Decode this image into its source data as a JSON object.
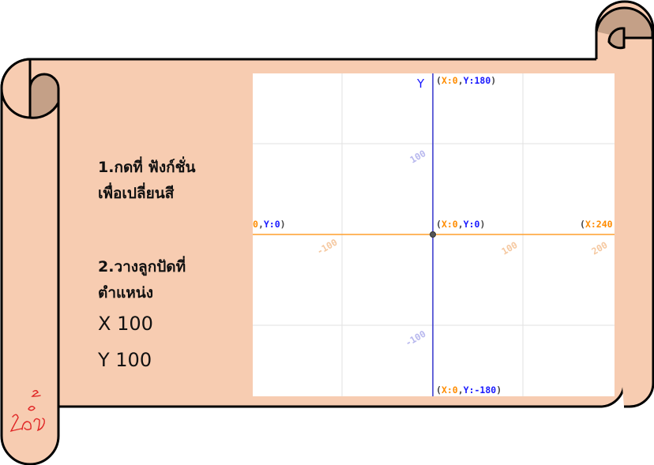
{
  "colors": {
    "scroll_fill": "#f7ccb1",
    "scroll_shadow": "#c4a087",
    "outline": "#000000",
    "x_axis": "#ff9f2b",
    "y_axis": "#3333cc",
    "label_x": "#ff8c00",
    "label_y": "#1a1aff",
    "gridline": "#e2e2e2",
    "faint_tick_x": "#f5c8a0",
    "faint_tick_y": "#b8b8ee",
    "signature": "#e02424"
  },
  "instructions": {
    "step1_line1": "1.กดที่  ฟังก์ชั่น",
    "step1_line2": "เพื่อเปลี่ยนสี",
    "step2_line1": "2.วางลูกปัดที่",
    "step2_line2": "ตำแหน่ง",
    "x_text": "X 100",
    "y_text": "Y 100"
  },
  "icons": {
    "signature": "signature-icon",
    "origin": "origin-dot-icon"
  },
  "coordinate_grid": {
    "y_axis_label": "Y",
    "top": {
      "open": "(",
      "x_key": "X:0",
      "comma": ",",
      "y_key": "Y:180",
      "close": ")"
    },
    "bottom": {
      "open": "(",
      "x_key": "X:0",
      "comma": ",",
      "y_key": "Y:-180",
      "close": ")"
    },
    "origin": {
      "open": "(",
      "x_key": "X:0",
      "comma": ",",
      "y_key": "Y:0",
      "close": ")"
    },
    "left": {
      "x_key": "0",
      "comma": ",",
      "y_key": "Y:0",
      "close": ")"
    },
    "right": {
      "open": "(",
      "x_key": "X:240"
    },
    "x_ticks": [
      "-100",
      "100",
      "200"
    ],
    "y_ticks": [
      "100",
      "-100"
    ]
  }
}
